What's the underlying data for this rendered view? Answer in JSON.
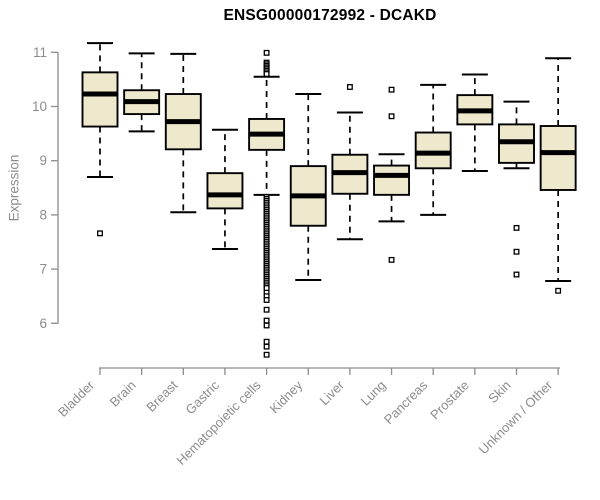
{
  "chart_data": {
    "type": "boxplot",
    "title": "ENSG00000172992 - DCAKD",
    "ylabel": "Expression",
    "xlabel": "",
    "ylim": [
      5.2,
      11.4
    ],
    "yticks": [
      6,
      7,
      8,
      9,
      10,
      11
    ],
    "legend": "none",
    "grid": false,
    "colors": {
      "box_fill": "#EEE8CD",
      "box_stroke": "#000000",
      "axis": "#8c8c8c",
      "tick_label": "#8c8c8c",
      "title": "#000000"
    },
    "categories": [
      "Bladder",
      "Brain",
      "Breast",
      "Gastric",
      "Hematopoietic cells",
      "Kidney",
      "Liver",
      "Lung",
      "Pancreas",
      "Prostate",
      "Skin",
      "Unknown / Other"
    ],
    "boxes": [
      {
        "category": "Bladder",
        "whisker_low": 8.7,
        "q1": 9.63,
        "median": 10.23,
        "q3": 10.63,
        "whisker_high": 11.17,
        "outliers_high": [],
        "outliers_low": [
          7.66
        ]
      },
      {
        "category": "Brain",
        "whisker_low": 9.54,
        "q1": 9.86,
        "median": 10.09,
        "q3": 10.3,
        "whisker_high": 10.98,
        "outliers_high": [],
        "outliers_low": []
      },
      {
        "category": "Breast",
        "whisker_low": 8.05,
        "q1": 9.21,
        "median": 9.72,
        "q3": 10.23,
        "whisker_high": 10.97,
        "outliers_high": [],
        "outliers_low": []
      },
      {
        "category": "Gastric",
        "whisker_low": 7.37,
        "q1": 8.12,
        "median": 8.37,
        "q3": 8.77,
        "whisker_high": 9.57,
        "outliers_high": [],
        "outliers_low": []
      },
      {
        "category": "Hematopoietic cells",
        "whisker_low": 8.37,
        "q1": 9.2,
        "median": 9.49,
        "q3": 9.77,
        "whisker_high": 10.55,
        "outliers_high": [
          10.99,
          10.81,
          10.78,
          10.75,
          10.72,
          10.69,
          10.66,
          10.63,
          10.6
        ],
        "outliers_low": [
          6.57,
          6.5,
          6.43,
          6.25,
          6.05,
          5.96,
          5.66,
          5.57,
          5.42
        ],
        "outliers_low_dense": {
          "from": 8.33,
          "to": 6.65,
          "count": 50
        }
      },
      {
        "category": "Kidney",
        "whisker_low": 6.8,
        "q1": 7.8,
        "median": 8.35,
        "q3": 8.9,
        "whisker_high": 10.23,
        "outliers_high": [],
        "outliers_low": []
      },
      {
        "category": "Liver",
        "whisker_low": 7.55,
        "q1": 8.39,
        "median": 8.78,
        "q3": 9.11,
        "whisker_high": 9.89,
        "outliers_high": [
          10.36
        ],
        "outliers_low": []
      },
      {
        "category": "Lung",
        "whisker_low": 7.88,
        "q1": 8.37,
        "median": 8.73,
        "q3": 8.91,
        "whisker_high": 9.12,
        "outliers_high": [
          10.31,
          9.82
        ],
        "outliers_low": [
          7.17
        ]
      },
      {
        "category": "Pancreas",
        "whisker_low": 8.0,
        "q1": 8.86,
        "median": 9.14,
        "q3": 9.52,
        "whisker_high": 10.4,
        "outliers_high": [],
        "outliers_low": []
      },
      {
        "category": "Prostate",
        "whisker_low": 8.81,
        "q1": 9.67,
        "median": 9.92,
        "q3": 10.21,
        "whisker_high": 10.59,
        "outliers_high": [],
        "outliers_low": []
      },
      {
        "category": "Skin",
        "whisker_low": 8.86,
        "q1": 8.96,
        "median": 9.35,
        "q3": 9.67,
        "whisker_high": 10.09,
        "outliers_high": [],
        "outliers_low": [
          7.76,
          7.32,
          6.9
        ]
      },
      {
        "category": "Unknown / Other",
        "whisker_low": 6.78,
        "q1": 8.46,
        "median": 9.15,
        "q3": 9.64,
        "whisker_high": 10.89,
        "outliers_high": [],
        "outliers_low": [
          6.6
        ]
      }
    ]
  }
}
